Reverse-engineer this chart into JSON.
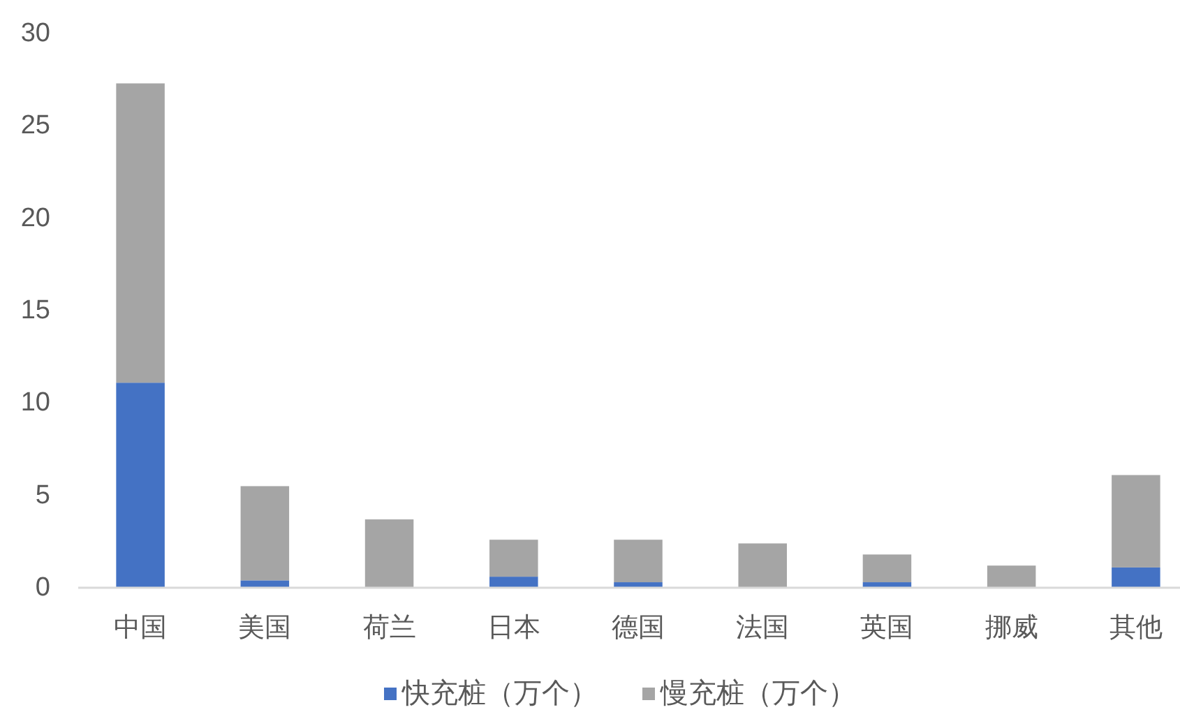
{
  "chart_data": {
    "type": "bar",
    "stacked": true,
    "categories": [
      "中国",
      "美国",
      "荷兰",
      "日本",
      "德国",
      "法国",
      "英国",
      "挪威",
      "其他"
    ],
    "series": [
      {
        "name": "快充桩（万个）",
        "color": "#4472c4",
        "values": [
          11.1,
          0.4,
          null,
          0.6,
          0.3,
          null,
          0.3,
          null,
          1.1
        ]
      },
      {
        "name": "慢充桩（万个）",
        "color": "#a5a5a5",
        "values": [
          16.2,
          5.1,
          3.7,
          2.0,
          2.3,
          2.4,
          1.5,
          1.2,
          5.0
        ]
      }
    ],
    "ylim": [
      0,
      30
    ],
    "yticks": [
      0,
      5,
      10,
      15,
      20,
      25,
      30
    ],
    "legend": "bottom"
  }
}
